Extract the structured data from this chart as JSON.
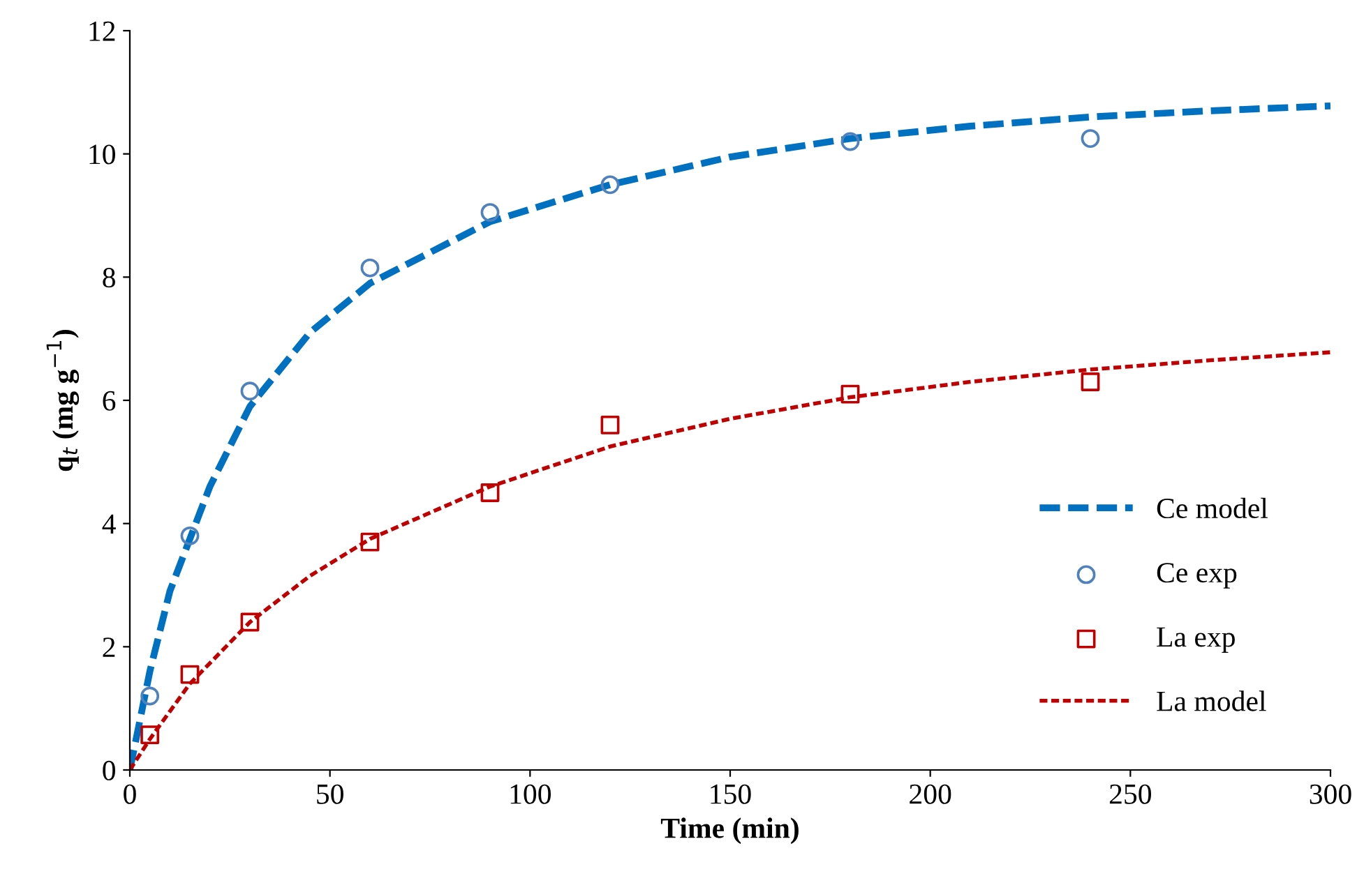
{
  "chart_data": {
    "type": "line",
    "xlabel": "Time (min)",
    "ylabel": "q$_{t}$ (mg g$^{−1}$)",
    "xlim": [
      0,
      300
    ],
    "ylim": [
      0,
      12
    ],
    "xticks": [
      0,
      50,
      100,
      150,
      200,
      250,
      300
    ],
    "yticks": [
      0,
      2,
      4,
      6,
      8,
      10,
      12
    ],
    "grid": false,
    "legend": "right",
    "series": [
      {
        "name": "Ce model",
        "line_style": "dashed",
        "marker": "none",
        "color": "#0070c0",
        "x": [
          0,
          5,
          10,
          20,
          30,
          45,
          60,
          90,
          120,
          150,
          180,
          210,
          240,
          270,
          300
        ],
        "values": [
          0,
          1.6,
          2.9,
          4.6,
          5.9,
          7.1,
          7.9,
          8.9,
          9.5,
          9.95,
          10.25,
          10.45,
          10.6,
          10.7,
          10.78
        ]
      },
      {
        "name": "Ce exp",
        "type": "scatter",
        "marker": "circle",
        "color": "#4f81bd",
        "x": [
          5,
          15,
          30,
          60,
          90,
          120,
          180,
          240
        ],
        "values": [
          1.2,
          3.8,
          6.15,
          8.15,
          9.05,
          9.5,
          10.2,
          10.25
        ]
      },
      {
        "name": "La exp",
        "type": "scatter",
        "marker": "square",
        "color": "#c00000",
        "x": [
          5,
          15,
          30,
          60,
          90,
          120,
          180,
          240
        ],
        "values": [
          0.57,
          1.55,
          2.4,
          3.7,
          4.5,
          5.6,
          6.1,
          6.3
        ]
      },
      {
        "name": "La model",
        "line_style": "dotted",
        "marker": "none",
        "color": "#c00000",
        "x": [
          0,
          5,
          15,
          30,
          45,
          60,
          90,
          120,
          150,
          180,
          210,
          240,
          270,
          300
        ],
        "values": [
          0,
          0.5,
          1.4,
          2.4,
          3.15,
          3.75,
          4.6,
          5.25,
          5.7,
          6.05,
          6.3,
          6.5,
          6.65,
          6.78
        ]
      }
    ]
  }
}
